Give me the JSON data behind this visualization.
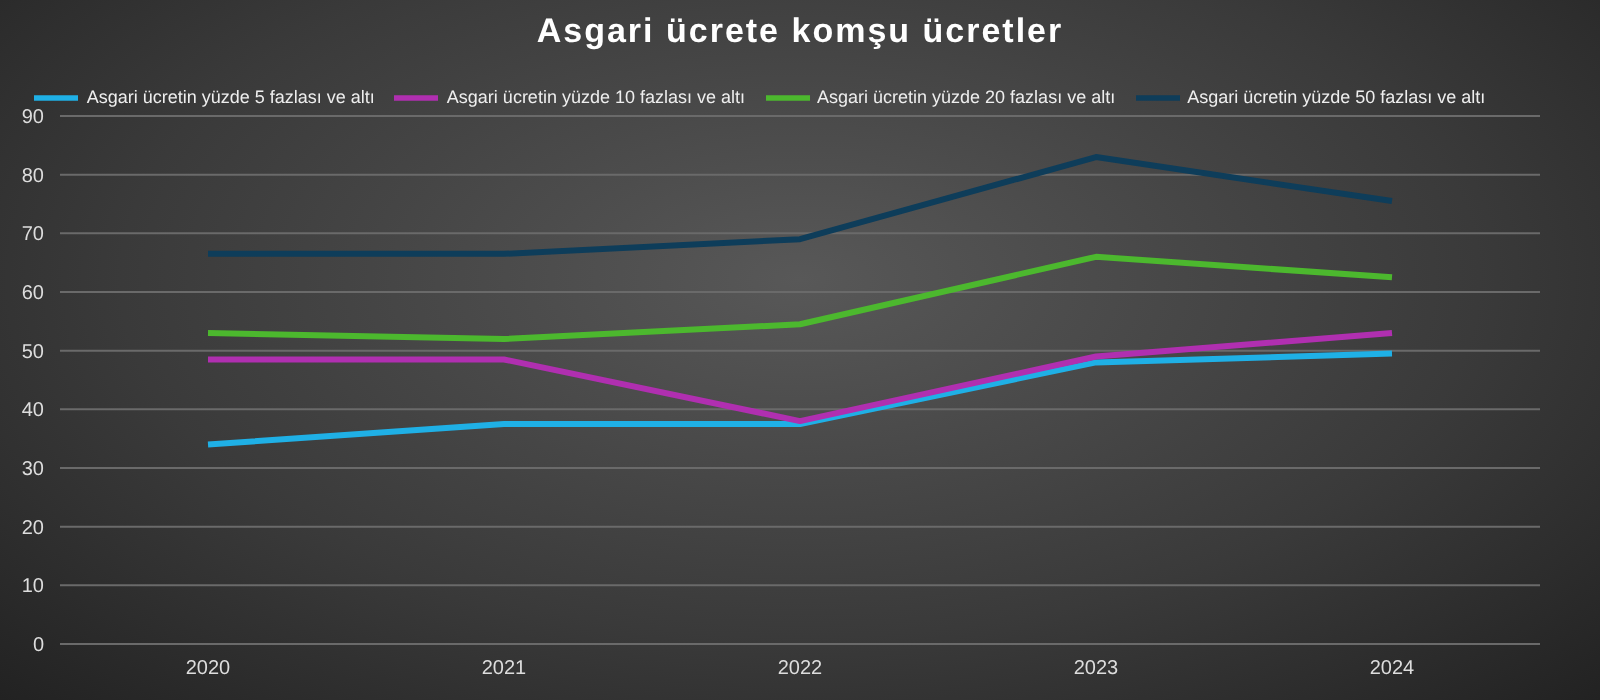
{
  "chart_data": {
    "type": "line",
    "title": "Asgari ücrete komşu ücretler",
    "categories": [
      "2020",
      "2021",
      "2022",
      "2023",
      "2024"
    ],
    "series": [
      {
        "name": "Asgari ücretin yüzde 5 fazlası ve altı",
        "color": "#1fb0e6",
        "values": [
          34,
          37.5,
          37.5,
          48,
          49.5
        ]
      },
      {
        "name": "Asgari ücretin yüzde 10 fazlası ve altı",
        "color": "#b02fb0",
        "values": [
          48.5,
          48.5,
          38,
          49,
          53
        ]
      },
      {
        "name": "Asgari ücretin yüzde 20 fazlası ve altı",
        "color": "#4cb82e",
        "values": [
          53,
          52,
          54.5,
          66,
          62.5
        ]
      },
      {
        "name": "Asgari ücretin yüzde 50 fazlası ve altı",
        "color": "#0e3d5a",
        "values": [
          66.5,
          66.5,
          69,
          83,
          75.5
        ]
      }
    ],
    "ylim": [
      0,
      90
    ],
    "yticks": [
      0,
      10,
      20,
      30,
      40,
      50,
      60,
      70,
      80,
      90
    ],
    "grid": "y",
    "legend": "top",
    "marker": "none",
    "line_style": "solid"
  }
}
